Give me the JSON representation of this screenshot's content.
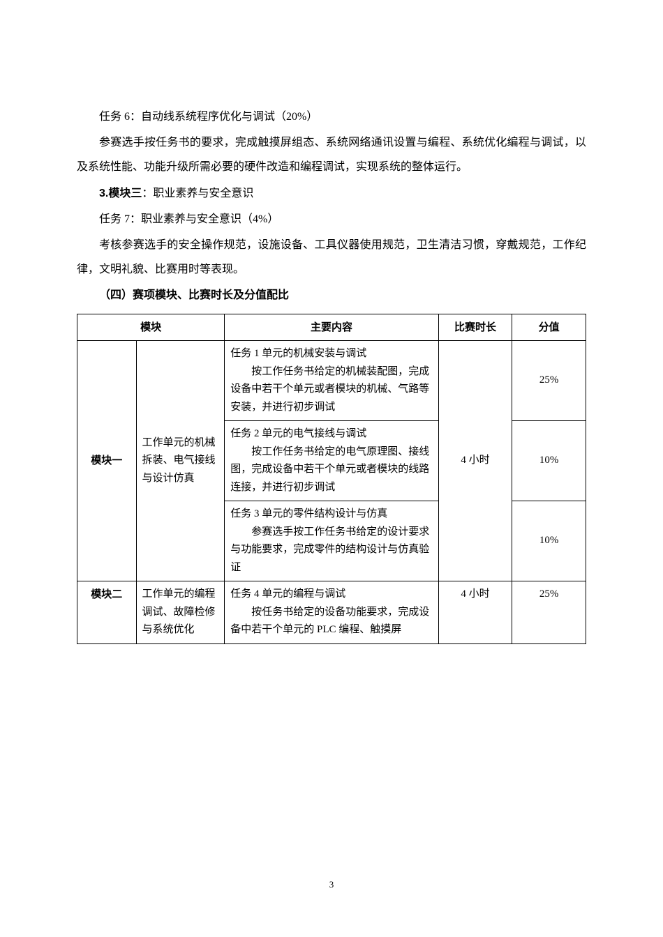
{
  "paragraphs": {
    "task6_title": "任务 6：自动线系统程序优化与调试（20%）",
    "task6_desc": "参赛选手按任务书的要求，完成触摸屏组态、系统网络通讯设置与编程、系统优化编程与调试，以及系统性能、功能升级所需必要的硬件改造和编程调试，实现系统的整体运行。",
    "module3_title_prefix": "3.模块三",
    "module3_title_suffix": "：职业素养与安全意识",
    "task7_title": "任务 7：职业素养与安全意识（4%）",
    "task7_desc": "考核参赛选手的安全操作规范，设施设备、工具仪器使用规范，卫生清洁习惯，穿戴规范，工作纪律，文明礼貌、比赛用时等表现。",
    "section4_title": "（四）赛项模块、比赛时长及分值配比"
  },
  "table": {
    "headers": {
      "module": "模块",
      "content": "主要内容",
      "duration": "比赛时长",
      "score": "分值"
    },
    "rows": {
      "module1_name": "模块一",
      "module1_sub": "工作单元的机械拆装、电气接线与设计仿真",
      "module1_task1_title": "任务 1 单元的机械安装与调试",
      "module1_task1_desc": "按工作任务书给定的机械装配图，完成设备中若干个单元或者模块的机械、气路等安装，并进行初步调试",
      "module1_task1_score": "25%",
      "module1_task2_title": "任务 2 单元的电气接线与调试",
      "module1_task2_desc": "按工作任务书给定的电气原理图、接线图，完成设备中若干个单元或者模块的线路连接，并进行初步调试",
      "module1_task2_score": "10%",
      "module1_task3_title": "任务 3 单元的零件结构设计与仿真",
      "module1_task3_desc": "参赛选手按工作任务书给定的设计要求与功能要求，完成零件的结构设计与仿真验证",
      "module1_task3_score": "10%",
      "module1_duration": "4 小时",
      "module2_name": "模块二",
      "module2_sub": "工作单元的编程调试、故障检修与系统优化",
      "module2_task4_title": "任务 4 单元的编程与调试",
      "module2_task4_desc": "按任务书给定的设备功能要求，完成设备中若干个单元的 PLC 编程、触摸屏",
      "module2_duration": "4 小时",
      "module2_task4_score": "25%"
    }
  },
  "page_number": "3"
}
